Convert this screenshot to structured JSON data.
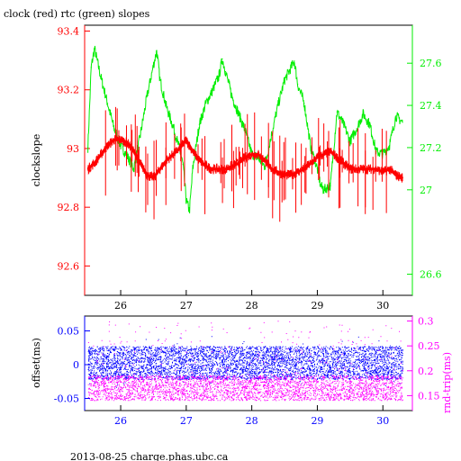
{
  "title": "clock (red) rtc (green) slopes",
  "footer": "2013-08-25 charge.phas.ubc.ca",
  "colors": {
    "red": "#ff0000",
    "green": "#00ee00",
    "blue": "#0000ff",
    "magenta": "#ff00ff",
    "black": "#000000"
  },
  "chart_data": [
    {
      "type": "line",
      "panel": "top",
      "title": "clock (red) rtc (green) slopes",
      "xlim": [
        25.45,
        30.45
      ],
      "x_ticks": [
        26,
        27,
        28,
        29,
        30
      ],
      "ylabel_left": "clockslope",
      "ylim_left": [
        92.5,
        93.42
      ],
      "yticks_left": [
        "92.6",
        "92.8",
        "93",
        "93.2",
        "93.4"
      ],
      "ylim_right": [
        26.5,
        27.78
      ],
      "yticks_right": [
        "26.6",
        "27",
        "27.2",
        "27.4",
        "27.6"
      ],
      "series": [
        {
          "axis": "left",
          "color": "red",
          "x": [
            25.5,
            25.6,
            25.7,
            25.8,
            25.9,
            26.0,
            26.1,
            26.2,
            26.3,
            26.4,
            26.5,
            26.6,
            26.7,
            26.8,
            26.9,
            27.0,
            27.1,
            27.2,
            27.3,
            27.4,
            27.5,
            27.6,
            27.7,
            27.8,
            27.9,
            28.0,
            28.1,
            28.2,
            28.3,
            28.4,
            28.5,
            28.6,
            28.7,
            28.8,
            28.9,
            29.0,
            29.1,
            29.2,
            29.3,
            29.4,
            29.5,
            29.6,
            29.7,
            29.8,
            29.9,
            30.0,
            30.1,
            30.2,
            30.3
          ],
          "y": [
            92.93,
            92.95,
            92.98,
            93.01,
            93.03,
            93.03,
            93.02,
            92.99,
            92.95,
            92.91,
            92.9,
            92.93,
            92.96,
            92.98,
            93.0,
            93.03,
            92.99,
            92.96,
            92.94,
            92.93,
            92.93,
            92.93,
            92.94,
            92.95,
            92.97,
            92.98,
            92.98,
            92.96,
            92.93,
            92.92,
            92.91,
            92.91,
            92.92,
            92.93,
            92.95,
            92.97,
            92.98,
            92.99,
            92.97,
            92.95,
            92.93,
            92.93,
            92.93,
            92.93,
            92.93,
            92.92,
            92.93,
            92.91,
            92.9
          ]
        },
        {
          "axis": "right",
          "color": "green",
          "x": [
            25.5,
            25.55,
            25.6,
            25.7,
            25.8,
            25.9,
            26.0,
            26.1,
            26.2,
            26.3,
            26.4,
            26.5,
            26.55,
            26.6,
            26.7,
            26.8,
            26.9,
            26.95,
            27.0,
            27.05,
            27.1,
            27.2,
            27.3,
            27.4,
            27.5,
            27.55,
            27.6,
            27.7,
            27.8,
            27.9,
            28.0,
            28.1,
            28.2,
            28.3,
            28.4,
            28.5,
            28.6,
            28.65,
            28.7,
            28.8,
            28.9,
            29.0,
            29.05,
            29.1,
            29.2,
            29.3,
            29.4,
            29.5,
            29.6,
            29.7,
            29.8,
            29.9,
            30.0,
            30.1,
            30.2,
            30.3
          ],
          "y": [
            27.2,
            27.58,
            27.67,
            27.53,
            27.41,
            27.29,
            27.21,
            27.16,
            27.1,
            27.26,
            27.44,
            27.59,
            27.66,
            27.52,
            27.39,
            27.3,
            27.19,
            27.12,
            26.95,
            26.9,
            27.1,
            27.31,
            27.41,
            27.47,
            27.54,
            27.62,
            27.56,
            27.44,
            27.36,
            27.28,
            27.17,
            27.15,
            27.11,
            27.26,
            27.4,
            27.52,
            27.58,
            27.61,
            27.5,
            27.41,
            27.2,
            27.1,
            27.02,
            27.0,
            27.02,
            27.37,
            27.31,
            27.23,
            27.29,
            27.36,
            27.31,
            27.18,
            27.17,
            27.21,
            27.35,
            27.32
          ]
        }
      ]
    },
    {
      "type": "scatter",
      "panel": "bottom",
      "xlim": [
        25.45,
        30.45
      ],
      "x_ticks": [
        26,
        27,
        28,
        29,
        30
      ],
      "ylabel_left": "offset(ms)",
      "ylim_left": [
        -0.068,
        0.072
      ],
      "yticks_left": [
        "-0.05",
        "0",
        "0.05"
      ],
      "ylabel_right": "rnd-trip(ms)",
      "ylim_right": [
        0.12,
        0.31
      ],
      "yticks_right": [
        "0.15",
        "0.2",
        "0.25",
        "0.3"
      ],
      "x_range_data": [
        25.5,
        30.3
      ],
      "series": [
        {
          "axis": "left",
          "color": "blue",
          "band": [
            -0.022,
            0.027
          ]
        },
        {
          "axis": "right",
          "color": "magenta",
          "band": [
            0.14,
            0.19
          ]
        }
      ]
    }
  ]
}
